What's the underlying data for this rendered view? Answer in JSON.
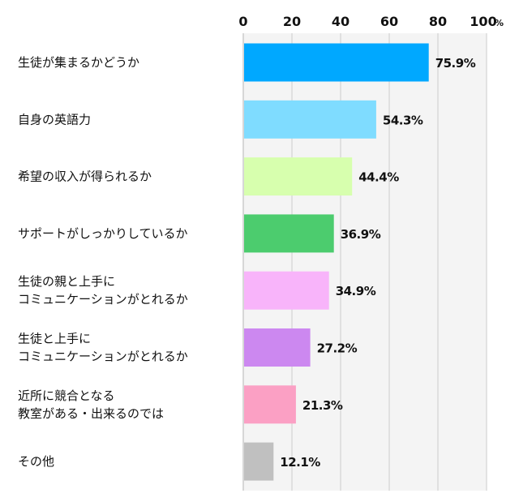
{
  "chart_data": {
    "type": "bar",
    "orientation": "horizontal",
    "x_unit": "%",
    "xlim": [
      0,
      100
    ],
    "x_ticks": [
      0,
      20,
      40,
      60,
      80,
      100
    ],
    "grid": true,
    "categories": [
      [
        "生徒が集まるかどうか"
      ],
      [
        "自身の英語力"
      ],
      [
        "希望の収入が得られるか"
      ],
      [
        "サポートがしっかりしているか"
      ],
      [
        "生徒の親と上手に",
        "コミュニケーションがとれるか"
      ],
      [
        "生徒と上手に",
        "コミュニケーションがとれるか"
      ],
      [
        "近所に競合となる",
        "教室がある・出来るのでは"
      ],
      [
        "その他"
      ]
    ],
    "values": [
      75.9,
      54.3,
      44.4,
      36.9,
      34.9,
      27.2,
      21.3,
      12.1
    ],
    "data_labels": [
      "75.9%",
      "54.3%",
      "44.4%",
      "36.9%",
      "34.9%",
      "27.2%",
      "21.3%",
      "12.1%"
    ],
    "colors": [
      "#00a8ff",
      "#7fdcff",
      "#d7ffae",
      "#4ccc6e",
      "#f8b4fa",
      "#cc88f0",
      "#fba0c4",
      "#c0c0c0"
    ],
    "plot_bg": "#f4f4f4",
    "grid_color": "#cccccc"
  }
}
